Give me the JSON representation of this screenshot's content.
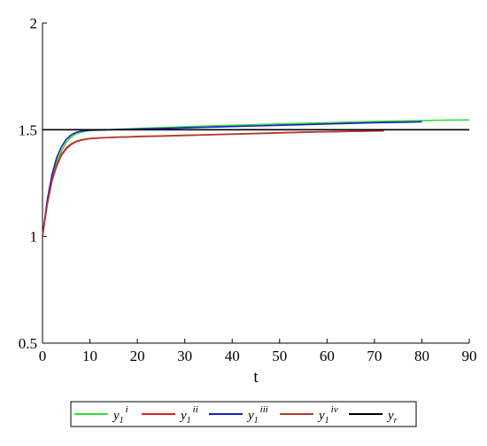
{
  "chart_data": {
    "type": "line",
    "title": "",
    "xlabel": "t",
    "ylabel": "",
    "xlim": [
      0,
      90
    ],
    "ylim": [
      0.5,
      2
    ],
    "x_ticks": [
      "0",
      "10",
      "20",
      "30",
      "40",
      "50",
      "60",
      "70",
      "80",
      "90"
    ],
    "y_ticks": [
      "0.5",
      "1",
      "1.5",
      "2"
    ],
    "grid": false,
    "legend_placement": "bottom",
    "series": [
      {
        "name": "y1 i",
        "base": "y",
        "sub": "1",
        "sup": "i",
        "color": "#33dd33",
        "x": [
          0,
          1,
          2,
          3,
          4,
          5,
          6,
          7,
          8,
          9,
          10,
          12,
          14,
          16,
          18,
          20,
          25,
          30,
          35,
          40,
          45,
          50,
          55,
          60,
          65,
          70,
          75,
          80,
          85,
          90
        ],
        "y": [
          1.0,
          1.16,
          1.27,
          1.35,
          1.4,
          1.44,
          1.465,
          1.48,
          1.488,
          1.493,
          1.496,
          1.498,
          1.5,
          1.502,
          1.504,
          1.506,
          1.51,
          1.514,
          1.518,
          1.521,
          1.524,
          1.527,
          1.53,
          1.533,
          1.536,
          1.539,
          1.541,
          1.543,
          1.545,
          1.546
        ]
      },
      {
        "name": "y1 ii",
        "base": "y",
        "sub": "1",
        "sup": "ii",
        "color": "#e02020",
        "x": [
          0,
          1,
          2,
          3,
          4,
          5,
          6,
          7,
          8,
          9,
          10,
          12,
          14,
          16,
          18,
          20,
          25,
          30,
          35,
          40,
          45,
          50,
          55,
          60,
          65,
          70,
          72
        ],
        "y": [
          1.0,
          1.15,
          1.26,
          1.33,
          1.38,
          1.41,
          1.43,
          1.443,
          1.45,
          1.455,
          1.458,
          1.461,
          1.463,
          1.465,
          1.466,
          1.468,
          1.47,
          1.473,
          1.476,
          1.479,
          1.482,
          1.485,
          1.488,
          1.49,
          1.492,
          1.494,
          1.495
        ]
      },
      {
        "name": "y1 iii",
        "base": "y",
        "sub": "1",
        "sup": "iii",
        "color": "#1a1acc",
        "x": [
          0,
          1,
          2,
          3,
          4,
          5,
          6,
          7,
          8,
          9,
          10,
          12,
          14,
          16,
          18,
          20,
          25,
          30,
          35,
          40,
          45,
          50,
          55,
          60,
          65,
          70,
          75,
          80
        ],
        "y": [
          1.0,
          1.17,
          1.29,
          1.37,
          1.42,
          1.455,
          1.475,
          1.487,
          1.493,
          1.496,
          1.498,
          1.499,
          1.5,
          1.501,
          1.502,
          1.503,
          1.506,
          1.509,
          1.512,
          1.515,
          1.518,
          1.521,
          1.524,
          1.527,
          1.53,
          1.533,
          1.535,
          1.537
        ]
      },
      {
        "name": "y1 iv",
        "base": "y",
        "sub": "1",
        "sup": "iv",
        "color": "#b03a2e",
        "x": [
          0,
          1,
          2,
          3,
          4,
          5,
          6,
          7,
          8,
          9,
          10,
          12,
          14,
          16,
          18,
          20,
          25,
          30,
          35,
          40,
          45,
          50,
          55,
          60,
          65,
          70,
          72
        ],
        "y": [
          1.0,
          1.15,
          1.265,
          1.335,
          1.385,
          1.415,
          1.433,
          1.445,
          1.452,
          1.456,
          1.459,
          1.462,
          1.464,
          1.466,
          1.467,
          1.469,
          1.471,
          1.474,
          1.477,
          1.48,
          1.483,
          1.486,
          1.489,
          1.491,
          1.493,
          1.495,
          1.496
        ]
      },
      {
        "name": "yr",
        "base": "y",
        "sub": "r",
        "sup": "",
        "color": "#000000",
        "x": [
          0,
          90
        ],
        "y": [
          1.5,
          1.5
        ]
      }
    ]
  }
}
